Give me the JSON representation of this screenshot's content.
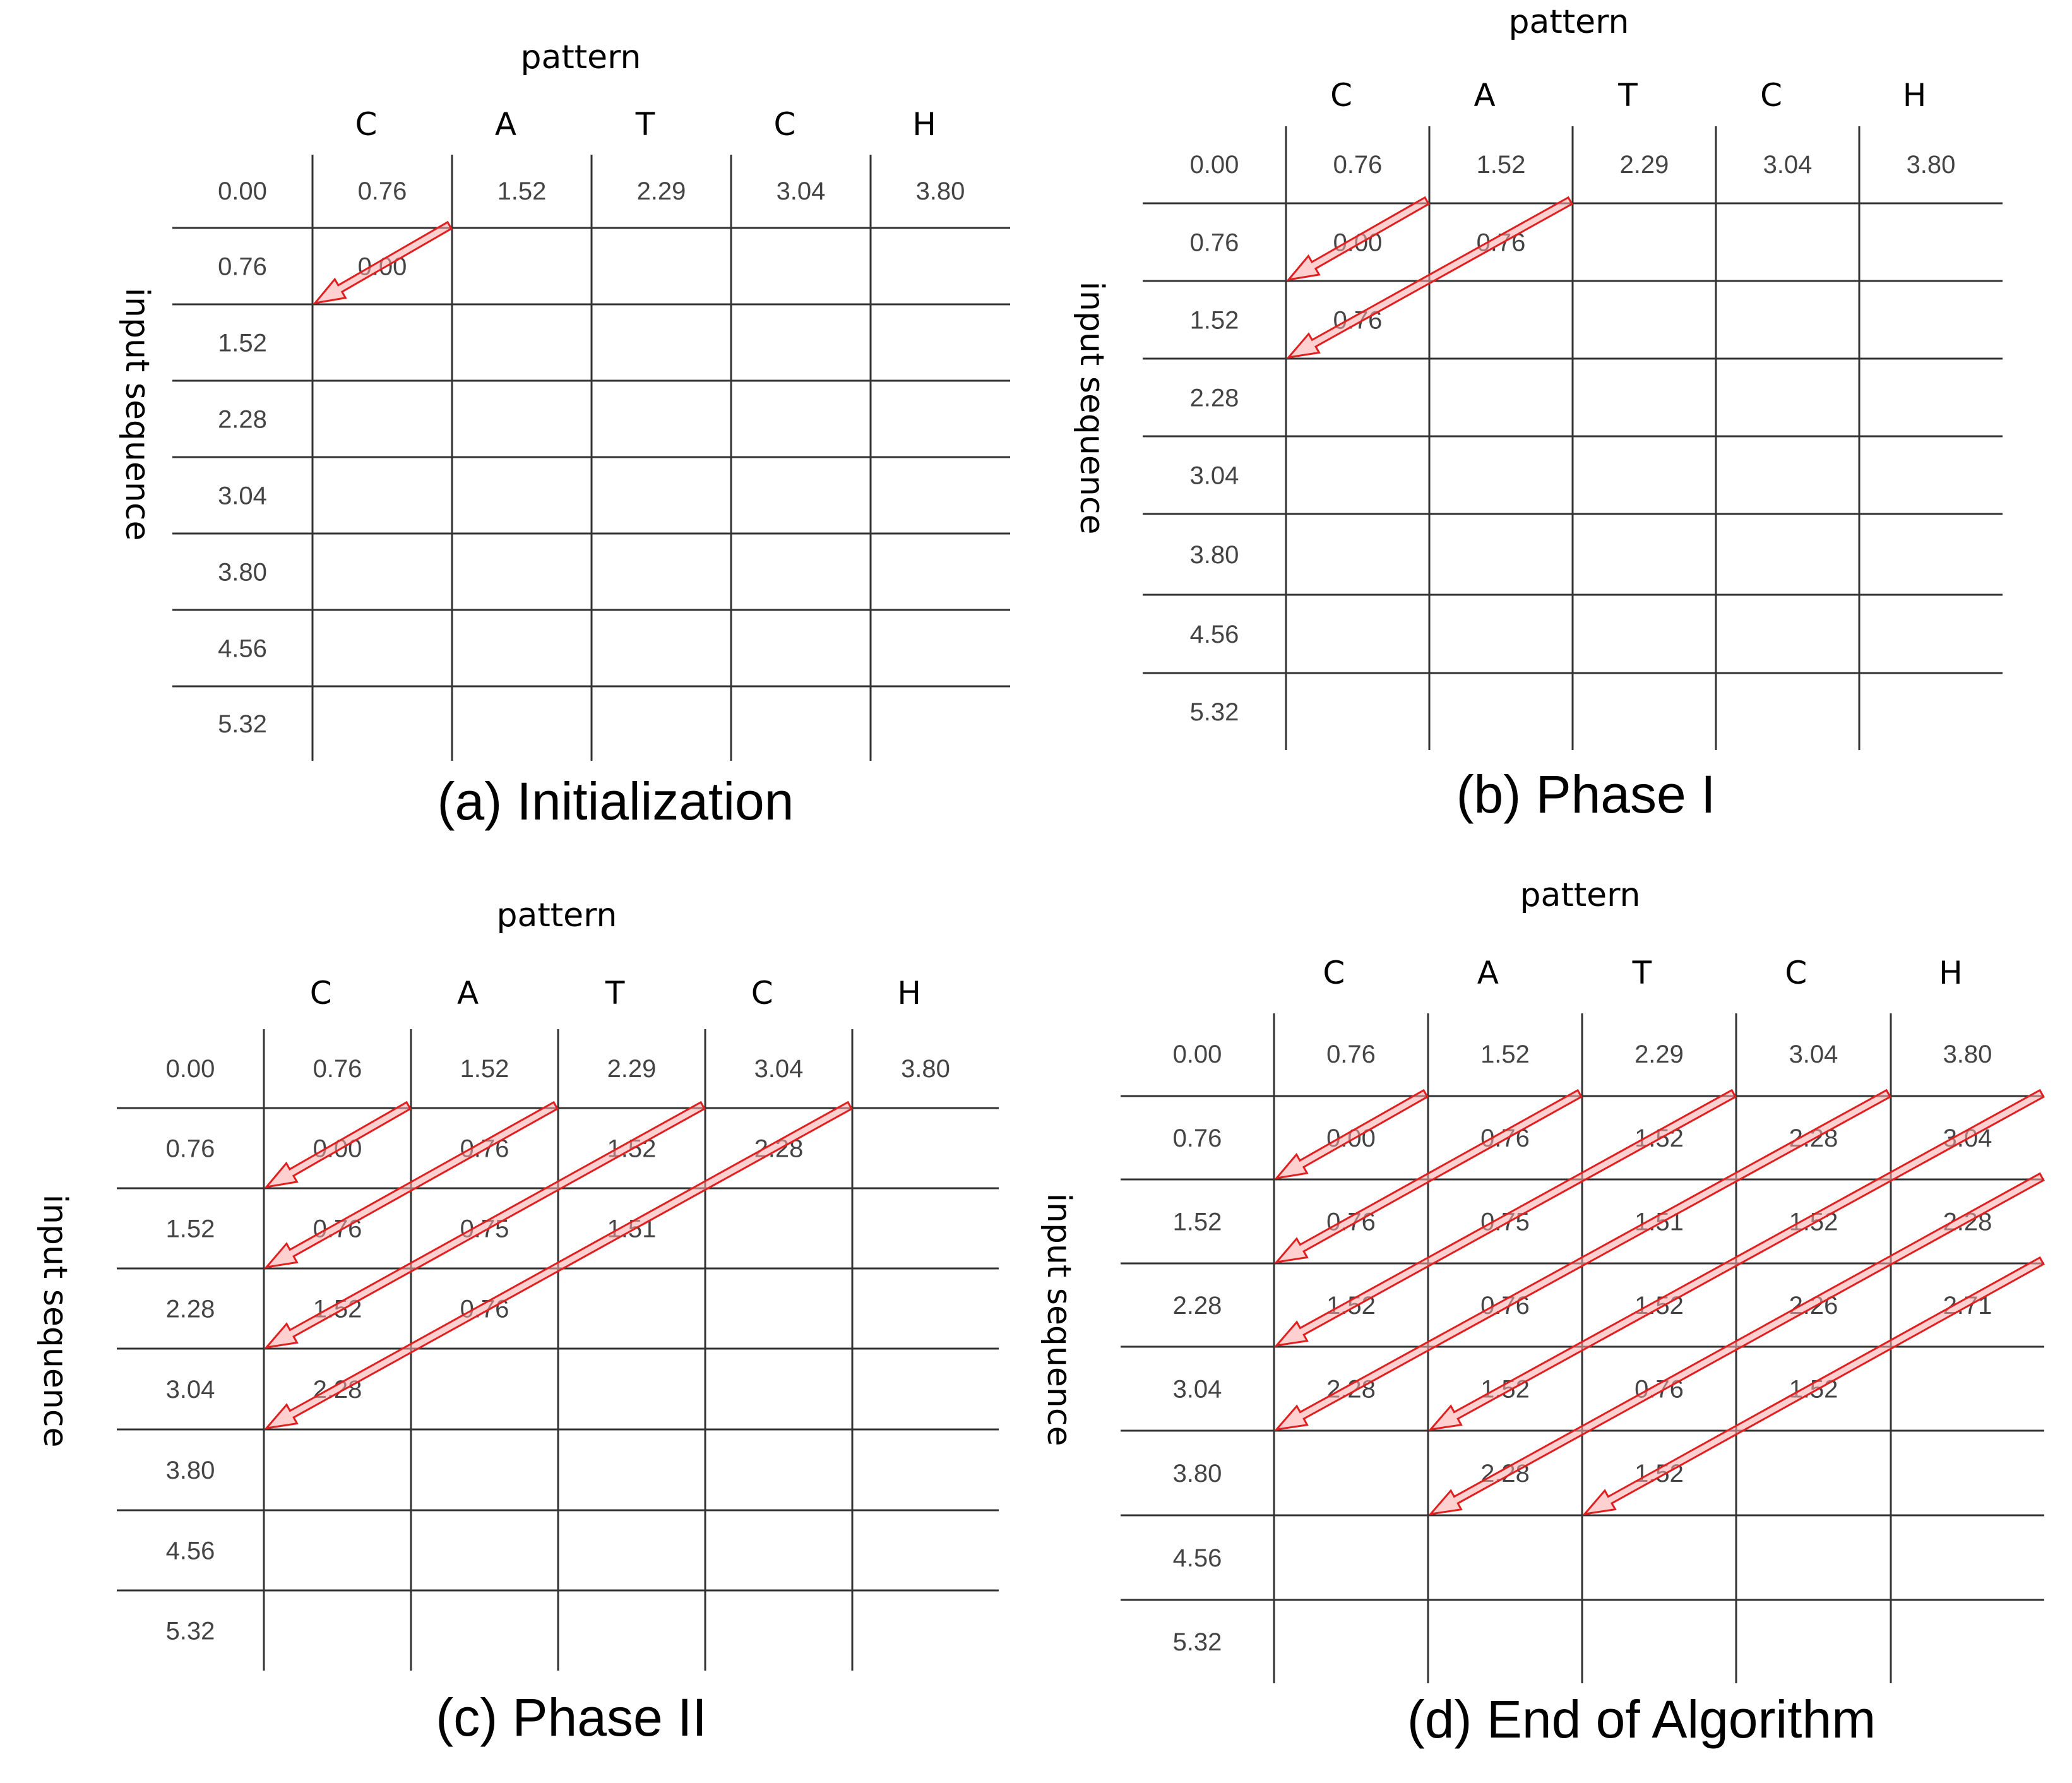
{
  "colors": {
    "grid": "#333333",
    "arrow_stroke": "#e02020",
    "arrow_fill": "#ffaaaa"
  },
  "panels": [
    {
      "id": "a",
      "caption": "(a) Initialization",
      "pattern_label": "pattern",
      "sequence_label": "input sequence",
      "pattern_chars": [
        "C",
        "A",
        "T",
        "C",
        "H"
      ],
      "col_headers": [
        "0.00",
        "0.76",
        "1.52",
        "2.29",
        "3.04",
        "3.80"
      ],
      "row_headers": [
        "0.76",
        "1.52",
        "2.28",
        "3.04",
        "3.80",
        "4.56",
        "5.32"
      ],
      "cells": [
        [
          "0.00",
          "",
          "",
          "",
          ""
        ]
      ],
      "arrows": [
        {
          "from": [
            0,
            0
          ],
          "to": [
            1,
            0
          ]
        }
      ]
    },
    {
      "id": "b",
      "caption": "(b) Phase I",
      "pattern_label": "pattern",
      "sequence_label": "input sequence",
      "pattern_chars": [
        "C",
        "A",
        "T",
        "C",
        "H"
      ],
      "col_headers": [
        "0.00",
        "0.76",
        "1.52",
        "2.29",
        "3.04",
        "3.80"
      ],
      "row_headers": [
        "0.76",
        "1.52",
        "2.28",
        "3.04",
        "3.80",
        "4.56",
        "5.32"
      ],
      "cells": [
        [
          "0.00",
          "0.76",
          "",
          "",
          ""
        ],
        [
          "0.76",
          "",
          "",
          "",
          ""
        ]
      ],
      "arrows": [
        {
          "from": [
            0,
            0
          ],
          "to": [
            1,
            0
          ]
        },
        {
          "from": [
            0,
            1
          ],
          "to": [
            2,
            0
          ]
        }
      ]
    },
    {
      "id": "c",
      "caption": "(c) Phase II",
      "pattern_label": "pattern",
      "sequence_label": "input sequence",
      "pattern_chars": [
        "C",
        "A",
        "T",
        "C",
        "H"
      ],
      "col_headers": [
        "0.00",
        "0.76",
        "1.52",
        "2.29",
        "3.04",
        "3.80"
      ],
      "row_headers": [
        "0.76",
        "1.52",
        "2.28",
        "3.04",
        "3.80",
        "4.56",
        "5.32"
      ],
      "cells": [
        [
          "0.00",
          "0.76",
          "1.52",
          "2.28",
          ""
        ],
        [
          "0.76",
          "0.75",
          "1.51",
          "",
          ""
        ],
        [
          "1.52",
          "0.76",
          "",
          "",
          ""
        ],
        [
          "2.28",
          "",
          "",
          "",
          ""
        ]
      ],
      "arrows": [
        {
          "from": [
            0,
            0
          ],
          "to": [
            1,
            0
          ]
        },
        {
          "from": [
            0,
            1
          ],
          "to": [
            2,
            0
          ]
        },
        {
          "from": [
            0,
            2
          ],
          "to": [
            3,
            0
          ]
        },
        {
          "from": [
            0,
            3
          ],
          "to": [
            4,
            0
          ]
        }
      ]
    },
    {
      "id": "d",
      "caption": "(d) End of Algorithm",
      "pattern_label": "pattern",
      "sequence_label": "input sequence",
      "pattern_chars": [
        "C",
        "A",
        "T",
        "C",
        "H"
      ],
      "col_headers": [
        "0.00",
        "0.76",
        "1.52",
        "2.29",
        "3.04",
        "3.80"
      ],
      "row_headers": [
        "0.76",
        "1.52",
        "2.28",
        "3.04",
        "3.80",
        "4.56",
        "5.32"
      ],
      "cells": [
        [
          "0.00",
          "0.76",
          "1.52",
          "2.28",
          "3.04"
        ],
        [
          "0.76",
          "0.75",
          "1.51",
          "1.52",
          "2.28"
        ],
        [
          "1.52",
          "0.76",
          "1.52",
          "2.26",
          "2.71"
        ],
        [
          "2.28",
          "1.52",
          "0.76",
          "1.52",
          ""
        ],
        [
          "",
          "2.28",
          "1.52",
          "",
          ""
        ]
      ],
      "arrows": [
        {
          "from": [
            0,
            0
          ],
          "to": [
            1,
            0
          ]
        },
        {
          "from": [
            0,
            1
          ],
          "to": [
            2,
            0
          ]
        },
        {
          "from": [
            0,
            2
          ],
          "to": [
            3,
            0
          ]
        },
        {
          "from": [
            0,
            3
          ],
          "to": [
            4,
            0
          ]
        },
        {
          "from": [
            0,
            4
          ],
          "to": [
            4,
            1
          ]
        },
        {
          "from": [
            1,
            4
          ],
          "to": [
            5,
            1
          ]
        },
        {
          "from": [
            2,
            4
          ],
          "to": [
            5,
            2
          ]
        }
      ]
    }
  ]
}
